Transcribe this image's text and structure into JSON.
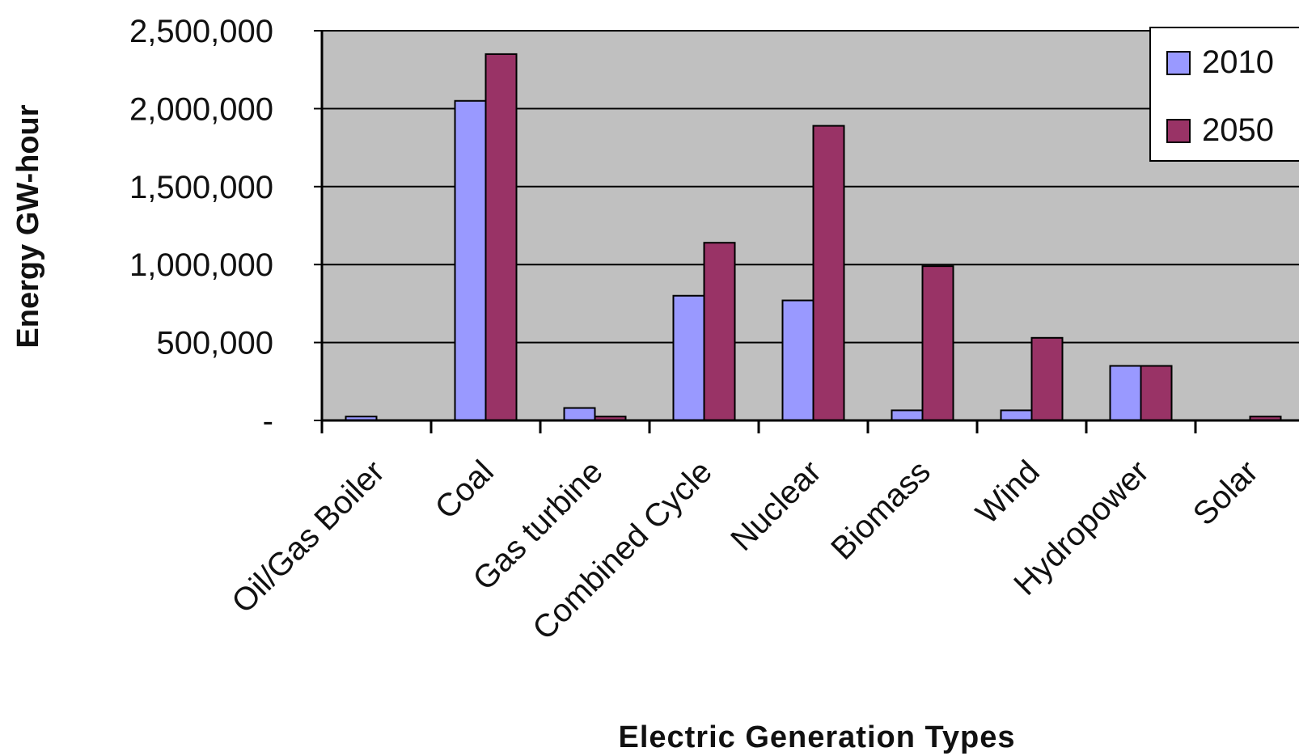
{
  "chart_data": {
    "type": "bar",
    "title": "",
    "xlabel": "Electric Generation Types",
    "ylabel": "Energy GW-hour",
    "categories": [
      "Oil/Gas Boiler",
      "Coal",
      "Gas turbine",
      "Combined Cycle",
      "Nuclear",
      "Biomass",
      "Wind",
      "Hydropower",
      "Solar"
    ],
    "series": [
      {
        "name": "2010",
        "color": "#9999ff",
        "values": [
          25000,
          2050000,
          80000,
          800000,
          770000,
          65000,
          65000,
          350000,
          0
        ]
      },
      {
        "name": "2050",
        "color": "#993366",
        "values": [
          0,
          2350000,
          25000,
          1140000,
          1890000,
          990000,
          530000,
          350000,
          25000
        ]
      }
    ],
    "ylim": [
      0,
      2500000
    ],
    "yticks": [
      {
        "value": 0,
        "label": "-"
      },
      {
        "value": 500000,
        "label": "500,000"
      },
      {
        "value": 1000000,
        "label": "1,000,000"
      },
      {
        "value": 1500000,
        "label": "1,500,000"
      },
      {
        "value": 2000000,
        "label": "2,000,000"
      },
      {
        "value": 2500000,
        "label": "2,500,000"
      }
    ],
    "grid": true,
    "plot_background": "#c0c0c0",
    "legend_position": "top-right"
  }
}
